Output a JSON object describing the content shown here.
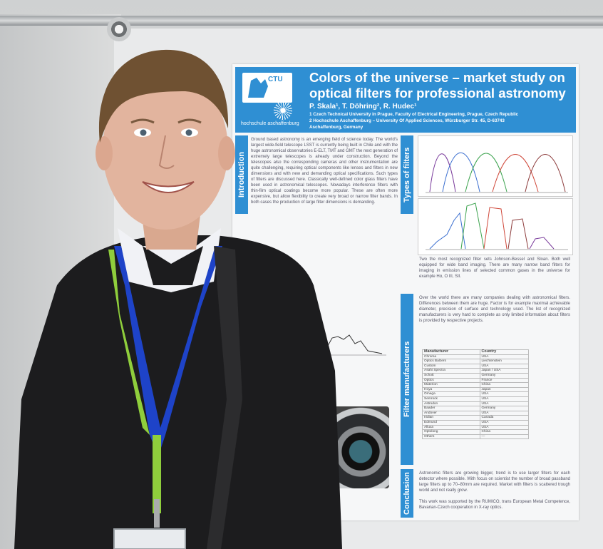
{
  "poster": {
    "logo_ctu": "CTU",
    "logo_hs": "hochschule aschaffenburg",
    "title": "Colors of the universe – market study on optical filters for professional astronomy",
    "authors": "P. Skala¹, T. Döhring², R. Hudec¹",
    "affiliation_1": "1 Czech Technical University in Prague, Faculty of Electrical Engineering, Prague, Czech Republic",
    "affiliation_2": "2 Hochschule Aschaffenburg – University Of Applied Sciences, Würzburger Str. 45, D-63743",
    "affiliation_3": "Aschaffenburg, Germany",
    "sections": {
      "introduction": "Introduction",
      "types_of_filters": "Types of filters",
      "filter_manufacturers": "Filter manufacturers",
      "conclusion": "Conclusion"
    },
    "intro_text": "Ground based astronomy is an emerging field of science today. The world's largest wide-field telescope LSST is currently being built in Chile and with the huge astronomical observatories E-ELT, TMT and GMT the next generation of extremely large telescopes is already under construction. Beyond the telescopes also the corresponding cameras and other instrumentation are quite challenging, requiring optical components like lenses and filters in new dimensions and with new and demanding optical specifications. Such types of filters are discussed here. Classically well-defined color glass filters have been used in astronomical telescopes. Nowadays interference filters with thin-film optical coatings become more popular. These are often more expensive, but allow flexibility to create very broad or narrow filter bands. In both cases the production of large filter dimensions is demanding.",
    "types_text": "Two the most recognized filter sets Johnson-Bessel and Sloan. Both well equipped for wide band imaging. There are many narrow band filters for imaging in emission lines of selected common gases in the universe for example Hα, O III, SII.",
    "mfr_text": "Over the world there are many companies dealing with astronomical filters. Differences between them are huge. Factor is for example maximal achievable diameter, precision of surface and technology used. The list of recognized manufacturers is very hard to complete as only limited information about filters is provided by respective projects.",
    "conclusion_text": "Astronomic filters are growing bigger, trend is to use larger filters for each detector where possible. With focus on scientist the number of broad passband large filters up to 70–80mm are required. Market with filters is scattered trough world and not really grow.",
    "ack_text": "This work was supported by the RUMICO, trans European Metal Competence, Bavarian-Czech cooperation in X-ray optics.",
    "table": {
      "headers": [
        "Manufacturer",
        "Country"
      ],
      "rows": [
        [
          "Chroma",
          "USA"
        ],
        [
          "Optics Balzers",
          "Liechtenstein"
        ],
        [
          "Custom",
          "USA"
        ],
        [
          "Asahi Spectra",
          "Japan / USA"
        ],
        [
          "Schott",
          "Germany"
        ],
        [
          "Optics",
          "France"
        ],
        [
          "Materion",
          "China"
        ],
        [
          "Hoya",
          "Japan"
        ],
        [
          "Omega",
          "USA"
        ],
        [
          "Semrock",
          "USA"
        ],
        [
          "Astrodon",
          "USA"
        ],
        [
          "Baader",
          "Germany"
        ],
        [
          "Andover",
          "USA"
        ],
        [
          "Iridian",
          "Canada"
        ],
        [
          "Edmund",
          "USA"
        ],
        [
          "Alluxa",
          "USA"
        ],
        [
          "Optolong",
          "China"
        ],
        [
          "Others",
          "—"
        ]
      ]
    }
  },
  "colors": {
    "poster_blue": "#2f8fd3",
    "sweater": "#1c1c1e",
    "lanyard_blue": "#1e43c8",
    "lanyard_green": "#8fce3c",
    "shirt": "#f1f2f6",
    "skin": "#e2b49e",
    "hair": "#6f5132"
  }
}
